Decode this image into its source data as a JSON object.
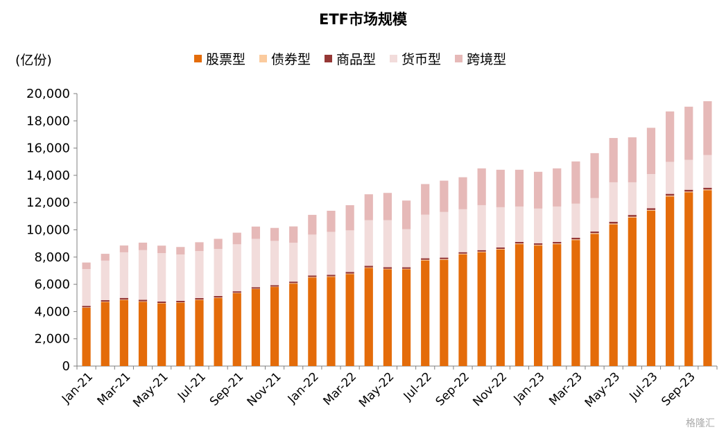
{
  "chart_data": {
    "type": "bar",
    "stacked": true,
    "title": "ETF市场规模",
    "ylabel": "(亿份)",
    "ylim": [
      0,
      20000
    ],
    "yticks": [
      0,
      2000,
      4000,
      6000,
      8000,
      10000,
      12000,
      14000,
      16000,
      18000,
      20000
    ],
    "ytick_labels": [
      "0",
      "2,000",
      "4,000",
      "6,000",
      "8,000",
      "10,000",
      "12,000",
      "14,000",
      "16,000",
      "18,000",
      "20,000"
    ],
    "categories": [
      "Jan-21",
      "Feb-21",
      "Mar-21",
      "Apr-21",
      "May-21",
      "Jun-21",
      "Jul-21",
      "Aug-21",
      "Sep-21",
      "Oct-21",
      "Nov-21",
      "Dec-21",
      "Jan-22",
      "Feb-22",
      "Mar-22",
      "Apr-22",
      "May-22",
      "Jun-22",
      "Jul-22",
      "Aug-22",
      "Sep-22",
      "Oct-22",
      "Nov-22",
      "Dec-22",
      "Jan-23",
      "Feb-23",
      "Mar-23",
      "Apr-23",
      "May-23",
      "Jun-23",
      "Jul-23",
      "Aug-23",
      "Sep-23",
      "Oct-23"
    ],
    "x_tick_labels": [
      "Jan-21",
      "Mar-21",
      "May-21",
      "Jul-21",
      "Sep-21",
      "Nov-21",
      "Jan-22",
      "Mar-22",
      "May-22",
      "Jul-22",
      "Sep-22",
      "Nov-22",
      "Jan-23",
      "Mar-23",
      "May-23",
      "Jul-23",
      "Sep-23"
    ],
    "legend_position": "top",
    "grid": false,
    "series": [
      {
        "name": "股票型",
        "color": "#E46C0A",
        "values": [
          4280,
          4700,
          4850,
          4720,
          4600,
          4650,
          4850,
          5000,
          5350,
          5650,
          5800,
          6050,
          6500,
          6550,
          6750,
          7200,
          7100,
          7100,
          7750,
          7800,
          8200,
          8350,
          8550,
          8950,
          8850,
          8950,
          9250,
          9700,
          10400,
          10900,
          11400,
          12450,
          12750,
          12900
        ]
      },
      {
        "name": "债券型",
        "color": "#FBCB9E",
        "values": [
          30,
          30,
          30,
          30,
          30,
          30,
          30,
          30,
          30,
          30,
          30,
          40,
          40,
          40,
          40,
          40,
          40,
          40,
          50,
          50,
          50,
          50,
          50,
          50,
          50,
          50,
          50,
          60,
          60,
          60,
          60,
          60,
          60,
          60
        ]
      },
      {
        "name": "商品型",
        "color": "#953735",
        "values": [
          110,
          110,
          120,
          110,
          110,
          110,
          110,
          110,
          110,
          110,
          110,
          110,
          110,
          110,
          120,
          120,
          120,
          110,
          110,
          110,
          110,
          110,
          110,
          110,
          110,
          110,
          120,
          120,
          130,
          130,
          130,
          130,
          130,
          130
        ]
      },
      {
        "name": "货币型",
        "color": "#F2DCDB",
        "values": [
          2700,
          2900,
          3350,
          3650,
          3550,
          3400,
          3450,
          3450,
          3450,
          3550,
          3250,
          2850,
          3000,
          3150,
          3050,
          3350,
          3450,
          2800,
          3200,
          3350,
          3150,
          3300,
          2950,
          2600,
          2550,
          2600,
          2500,
          2450,
          2900,
          2400,
          2500,
          2350,
          2200,
          2400
        ]
      },
      {
        "name": "跨境型",
        "color": "#E6B9B8",
        "values": [
          480,
          500,
          500,
          550,
          550,
          550,
          650,
          750,
          850,
          900,
          950,
          1200,
          1450,
          1550,
          1850,
          1900,
          2000,
          2100,
          2250,
          2300,
          2350,
          2700,
          2750,
          2700,
          2700,
          2800,
          3100,
          3300,
          3250,
          3300,
          3400,
          3700,
          3900,
          3950
        ]
      }
    ]
  },
  "watermark": "格隆汇"
}
